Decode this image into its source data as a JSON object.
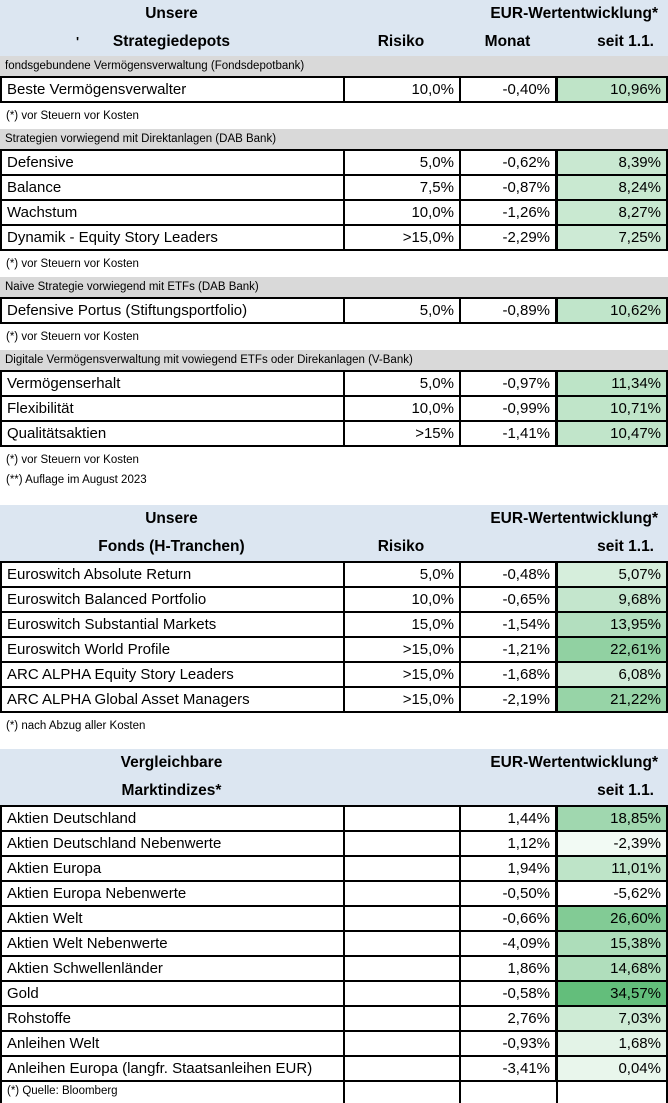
{
  "palette": {
    "header_bg": "#dce6f1",
    "section_band_bg": "#d9d9d9",
    "heatmap_max_green": "#63BE7B",
    "border": "#000000"
  },
  "stray_mark": "'",
  "tables": [
    {
      "header": {
        "title_line1": "Unsere",
        "title_line2": "Strategiedepots",
        "perf_label": "EUR-Wertentwicklung*",
        "risiko_label": "Risiko",
        "monat_label": "Monat",
        "seit_label": "seit 1.1."
      },
      "sections": [
        {
          "label": "fondsgebundene Vermögensverwaltung (Fondsdepotbank)",
          "rows": [
            {
              "name": "Beste Vermögensverwalter",
              "risiko": "10,0%",
              "monat": "-0,40%",
              "seit": "10,96%",
              "seit_color": "#BFE4C8"
            }
          ],
          "footnotes": [
            "(*) vor Steuern vor Kosten"
          ]
        },
        {
          "label": "Strategien vorwiegend mit Direktanlagen (DAB Bank)",
          "rows": [
            {
              "name": "Defensive",
              "risiko": "5,0%",
              "monat": "-0,62%",
              "seit": "8,39%",
              "seit_color": "#C9E8D1"
            },
            {
              "name": "Balance",
              "risiko": "7,5%",
              "monat": "-0,87%",
              "seit": "8,24%",
              "seit_color": "#C9E9D1"
            },
            {
              "name": "Wachstum",
              "risiko": "10,0%",
              "monat": "-1,26%",
              "seit": "8,27%",
              "seit_color": "#C9E9D1"
            },
            {
              "name": "Dynamik - Equity Story Leaders",
              "risiko": ">15,0%",
              "monat": "-2,29%",
              "seit": "7,25%",
              "seit_color": "#CDEAD5"
            }
          ],
          "footnotes": [
            "(*) vor Steuern vor Kosten"
          ]
        },
        {
          "label": "Naive Strategie vorwiegend mit ETFs (DAB Bank)",
          "rows": [
            {
              "name": "Defensive Portus (Stiftungsportfolio)",
              "risiko": "5,0%",
              "monat": "-0,89%",
              "seit": "10,62%",
              "seit_color": "#C0E5CA"
            }
          ],
          "footnotes": [
            "(*) vor Steuern vor Kosten"
          ]
        },
        {
          "label": "Digitale Vermögensverwaltung mit vowiegend ETFs oder Direkanlagen (V-Bank)",
          "rows": [
            {
              "name": "Vermögenserhalt",
              "risiko": "5,0%",
              "monat": "-0,97%",
              "seit": "11,34%",
              "seit_color": "#BDE4C7"
            },
            {
              "name": "Flexibilität",
              "risiko": "10,0%",
              "monat": "-0,99%",
              "seit": "10,71%",
              "seit_color": "#C0E5C9"
            },
            {
              "name": "Qualitätsaktien",
              "risiko": ">15%",
              "monat": "-1,41%",
              "seit": "10,47%",
              "seit_color": "#C1E5CA"
            }
          ],
          "footnotes": [
            "(*) vor Steuern vor Kosten",
            "(**) Auflage im August 2023"
          ]
        }
      ]
    },
    {
      "header": {
        "title_line1": "Unsere",
        "title_line2": "Fonds (H-Tranchen)",
        "perf_label": "EUR-Wertentwicklung*",
        "risiko_label": "Risiko",
        "monat_label": "",
        "seit_label": "seit 1.1."
      },
      "sections": [
        {
          "label": "",
          "rows": [
            {
              "name": "Euroswitch Absolute Return",
              "risiko": "5,0%",
              "monat": "-0,48%",
              "seit": "5,07%",
              "seit_color": "#D6EEDC"
            },
            {
              "name": "Euroswitch Balanced Portfolio",
              "risiko": "10,0%",
              "monat": "-0,65%",
              "seit": "9,68%",
              "seit_color": "#C4E6CD"
            },
            {
              "name": "Euroswitch Substantial Markets",
              "risiko": "15,0%",
              "monat": "-1,54%",
              "seit": "13,95%",
              "seit_color": "#B3DFBF"
            },
            {
              "name": "Euroswitch World Profile",
              "risiko": ">15,0%",
              "monat": "-1,21%",
              "seit": "22,61%",
              "seit_color": "#91D1A2"
            },
            {
              "name": "ARC ALPHA Equity Story Leaders",
              "risiko": ">15,0%",
              "monat": "-1,68%",
              "seit": "6,08%",
              "seit_color": "#D2ECD9"
            },
            {
              "name": "ARC ALPHA Global Asset Managers",
              "risiko": ">15,0%",
              "monat": "-2,19%",
              "seit": "21,22%",
              "seit_color": "#97D4A7"
            }
          ],
          "footnotes": [
            "(*) nach Abzug aller Kosten"
          ]
        }
      ]
    },
    {
      "header": {
        "title_line1": "Vergleichbare",
        "title_line2": "Marktindizes*",
        "perf_label": "EUR-Wertentwicklung*",
        "risiko_label": "",
        "monat_label": "",
        "seit_label": "seit 1.1."
      },
      "sections": [
        {
          "label": "",
          "rows": [
            {
              "name": "Aktien Deutschland",
              "risiko": "",
              "monat": "1,44%",
              "seit": "18,85%",
              "seit_color": "#A0D7AF"
            },
            {
              "name": "Aktien Deutschland Nebenwerte",
              "risiko": "",
              "monat": "1,12%",
              "seit": "-2,39%",
              "seit_color": "#F2FAF4"
            },
            {
              "name": "Aktien Europa",
              "risiko": "",
              "monat": "1,94%",
              "seit": "11,01%",
              "seit_color": "#BEE4C8"
            },
            {
              "name": "Aktien Europa Nebenwerte",
              "risiko": "",
              "monat": "-0,50%",
              "seit": "-5,62%",
              "seit_color": "#FFFFFF"
            },
            {
              "name": "Aktien Welt",
              "risiko": "",
              "monat": "-0,66%",
              "seit": "26,60%",
              "seit_color": "#82CB95"
            },
            {
              "name": "Aktien Welt Nebenwerte",
              "risiko": "",
              "monat": "-4,09%",
              "seit": "15,38%",
              "seit_color": "#ADDDBA"
            },
            {
              "name": "Aktien Schwellenländer",
              "risiko": "",
              "monat": "1,86%",
              "seit": "14,68%",
              "seit_color": "#B0DEBC"
            },
            {
              "name": "Gold",
              "risiko": "",
              "monat": "-0,58%",
              "seit": "34,57%",
              "seit_color": "#63BE7B"
            },
            {
              "name": "Rohstoffe",
              "risiko": "",
              "monat": "2,76%",
              "seit": "7,03%",
              "seit_color": "#CEEBD5"
            },
            {
              "name": "Anleihen Welt",
              "risiko": "",
              "monat": "-0,93%",
              "seit": "1,68%",
              "seit_color": "#E3F3E7"
            },
            {
              "name": "Anleihen Europa (langfr. Staatsanleihen EUR)",
              "risiko": "",
              "monat": "-3,41%",
              "seit": "0,04%",
              "seit_color": "#E9F6EC"
            }
          ],
          "footnotes": [
            "(*) Quelle: Bloomberg"
          ]
        }
      ]
    }
  ]
}
